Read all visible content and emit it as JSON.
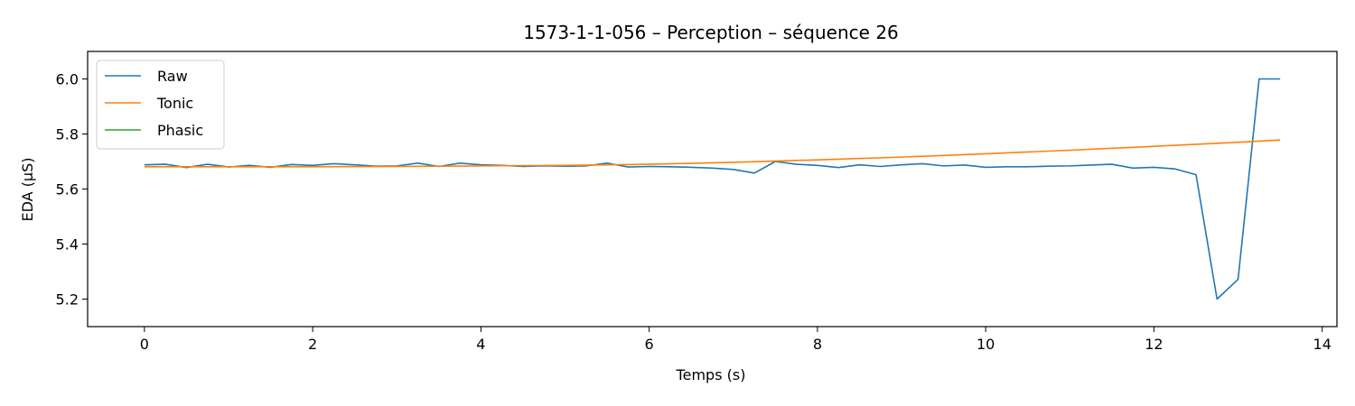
{
  "chart_data": {
    "type": "line",
    "title": "1573-1-1-056 – Perception – séquence 26",
    "xlabel": "Temps (s)",
    "ylabel": "EDA (µS)",
    "xlim": [
      -0.675,
      14.175
    ],
    "ylim": [
      5.1,
      6.1
    ],
    "xticks": [
      0,
      2,
      4,
      6,
      8,
      10,
      12,
      14
    ],
    "yticks": [
      5.2,
      5.4,
      5.6,
      5.8,
      6.0
    ],
    "xtick_labels": [
      "0",
      "2",
      "4",
      "6",
      "8",
      "10",
      "12",
      "14"
    ],
    "ytick_labels": [
      "5.2",
      "5.4",
      "5.6",
      "5.8",
      "6.0"
    ],
    "grid": false,
    "legend_position": "top-left",
    "series": [
      {
        "name": "Raw",
        "color": "#1f77b4",
        "x": [
          0.0,
          0.25,
          0.5,
          0.75,
          1.0,
          1.25,
          1.5,
          1.75,
          2.0,
          2.25,
          2.5,
          2.75,
          3.0,
          3.25,
          3.5,
          3.75,
          4.0,
          4.25,
          4.5,
          4.75,
          5.0,
          5.25,
          5.5,
          5.75,
          6.0,
          6.25,
          6.5,
          6.75,
          7.0,
          7.25,
          7.5,
          7.75,
          8.0,
          8.25,
          8.5,
          8.75,
          9.0,
          9.25,
          9.5,
          9.75,
          10.0,
          10.25,
          10.5,
          10.75,
          11.0,
          11.25,
          11.5,
          11.75,
          12.0,
          12.25,
          12.5,
          12.75,
          13.0,
          13.25,
          13.5
        ],
        "values": [
          5.688,
          5.69,
          5.678,
          5.69,
          5.68,
          5.686,
          5.679,
          5.689,
          5.686,
          5.692,
          5.688,
          5.683,
          5.684,
          5.694,
          5.682,
          5.694,
          5.688,
          5.686,
          5.682,
          5.684,
          5.683,
          5.684,
          5.694,
          5.68,
          5.682,
          5.681,
          5.679,
          5.676,
          5.671,
          5.658,
          5.7,
          5.69,
          5.686,
          5.678,
          5.688,
          5.682,
          5.688,
          5.692,
          5.684,
          5.687,
          5.679,
          5.681,
          5.681,
          5.683,
          5.684,
          5.687,
          5.69,
          5.676,
          5.679,
          5.673,
          5.652,
          5.2,
          5.272,
          6.0,
          6.0
        ]
      },
      {
        "name": "Tonic",
        "color": "#ff7f0e",
        "x": [
          0,
          1,
          2,
          3,
          4,
          5,
          6,
          7,
          8,
          9,
          10,
          11,
          12,
          13,
          13.5
        ],
        "values": [
          5.681,
          5.681,
          5.681,
          5.682,
          5.684,
          5.686,
          5.69,
          5.697,
          5.706,
          5.716,
          5.728,
          5.741,
          5.755,
          5.77,
          5.778
        ]
      },
      {
        "name": "Phasic",
        "color": "#2ca02c",
        "x": [],
        "values": []
      }
    ]
  }
}
